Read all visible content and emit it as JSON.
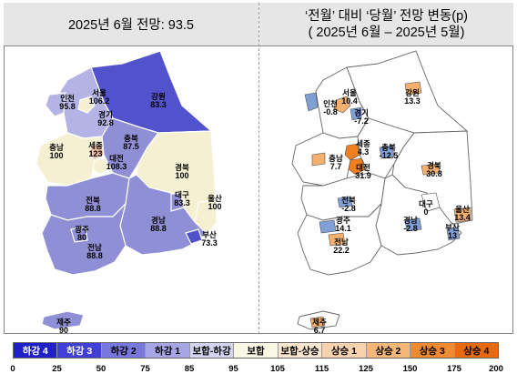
{
  "left_panel": {
    "title": "2025년 6월 전망: 93.5",
    "regions": {
      "incheon": {
        "name": "인천",
        "value": "95.8",
        "color": "#b3b3e6"
      },
      "seoul": {
        "name": "서울",
        "value": "106.2",
        "color": "#f5f0d2"
      },
      "gyeonggi": {
        "name": "경기",
        "value": "92.8",
        "color": "#b3b3e6"
      },
      "gangwon": {
        "name": "강원",
        "value": "83.3",
        "color": "#5252cc"
      },
      "chungbuk": {
        "name": "충북",
        "value": "87.5",
        "color": "#8f8fd6"
      },
      "chungnam": {
        "name": "충남",
        "value": "100",
        "color": "#f5f0d2"
      },
      "sejong": {
        "name": "세종",
        "value": "123",
        "color": "#f2c2a6"
      },
      "daejeon": {
        "name": "대전",
        "value": "108.3",
        "color": "#f5f0d2"
      },
      "gyeongbuk": {
        "name": "경북",
        "value": "100",
        "color": "#f5f0d2"
      },
      "daegu": {
        "name": "대구",
        "value": "83.3",
        "color": "#8f8fd6"
      },
      "ulsan": {
        "name": "울산",
        "value": "100",
        "color": "#f5f0d2"
      },
      "jeonbuk": {
        "name": "전북",
        "value": "88.8",
        "color": "#8f8fd6"
      },
      "gwangju": {
        "name": "광주",
        "value": "80",
        "color": "#8f8fd6"
      },
      "jeonnam": {
        "name": "전남",
        "value": "88.8",
        "color": "#8f8fd6"
      },
      "gyeongnam": {
        "name": "경남",
        "value": "88.8",
        "color": "#8f8fd6"
      },
      "busan": {
        "name": "부산",
        "value": "73.3",
        "color": "#5252cc"
      },
      "jeju": {
        "name": "제주",
        "value": "90",
        "color": "#8f8fd6"
      }
    }
  },
  "right_panel": {
    "title_line1": "‘전월’ 대비 ‘당월’ 전망 변동(p)",
    "title_line2": "( 2025년 6월 –  2025년 5월)",
    "regions": {
      "seoul": {
        "name": "서울",
        "value": "10.4",
        "color": "#f5b070"
      },
      "incheon": {
        "name": "인천",
        "value": "-0.8",
        "color": "#7f9fd6"
      },
      "gyeonggi": {
        "name": "경기",
        "value": "-7.2",
        "color": "#7f9fd6"
      },
      "gangwon": {
        "name": "강원",
        "value": "13.3",
        "color": "#f5b070"
      },
      "sejong": {
        "name": "세종",
        "value": "4.3",
        "color": "#f07f20"
      },
      "chungbuk": {
        "name": "충북",
        "value": "-12.5",
        "color": "#7f9fd6"
      },
      "chungnam": {
        "name": "충남",
        "value": "7.7",
        "color": "#f5b070"
      },
      "daejeon": {
        "name": "대전",
        "value": "31.9",
        "color": "#f07f20"
      },
      "gyeongbuk": {
        "name": "경북",
        "value": "30.8",
        "color": "#f5b070"
      },
      "jeonbuk": {
        "name": "전북",
        "value": "-2.8",
        "color": "#7f9fd6"
      },
      "daegu": {
        "name": "대구",
        "value": "0",
        "color": "#ffffff"
      },
      "ulsan": {
        "name": "울산",
        "value": "13.4",
        "color": "#f5b070"
      },
      "gwangju": {
        "name": "광주",
        "value": "14.1",
        "color": "#7f9fd6"
      },
      "gyeongnam": {
        "name": "경남",
        "value": "-2.8",
        "color": "#7f9fd6"
      },
      "busan": {
        "name": "부산",
        "value": "13",
        "color": "#7f9fd6"
      },
      "jeonnam": {
        "name": "전남",
        "value": "22.2",
        "color": "#f5b070"
      },
      "jeju": {
        "name": "제주",
        "value": "6.7",
        "color": "#f5b070"
      }
    }
  },
  "legend": {
    "items": [
      {
        "label": "하강 4",
        "color": "#2020c8",
        "text_color": "#ffffff"
      },
      {
        "label": "하강 3",
        "color": "#4040d8",
        "text_color": "#ffffff"
      },
      {
        "label": "하강 2",
        "color": "#7777dd",
        "text_color": "#000000"
      },
      {
        "label": "하강 1",
        "color": "#a6a6e6",
        "text_color": "#000000"
      },
      {
        "label": "보합-하강",
        "color": "#d4d4f2",
        "text_color": "#000000"
      },
      {
        "label": "보합",
        "color": "#fbf7e4",
        "text_color": "#000000"
      },
      {
        "label": "보합-상승",
        "color": "#fbe6cf",
        "text_color": "#000000"
      },
      {
        "label": "상승 1",
        "color": "#f8d2ad",
        "text_color": "#000000"
      },
      {
        "label": "상승 2",
        "color": "#f5b67a",
        "text_color": "#000000"
      },
      {
        "label": "상승 3",
        "color": "#f08a30",
        "text_color": "#000000"
      },
      {
        "label": "상승 4",
        "color": "#e86a10",
        "text_color": "#000000"
      }
    ],
    "ticks": [
      "0",
      "25",
      "50",
      "75",
      "85",
      "95",
      "105",
      "115",
      "125",
      "150",
      "175",
      "200"
    ]
  }
}
